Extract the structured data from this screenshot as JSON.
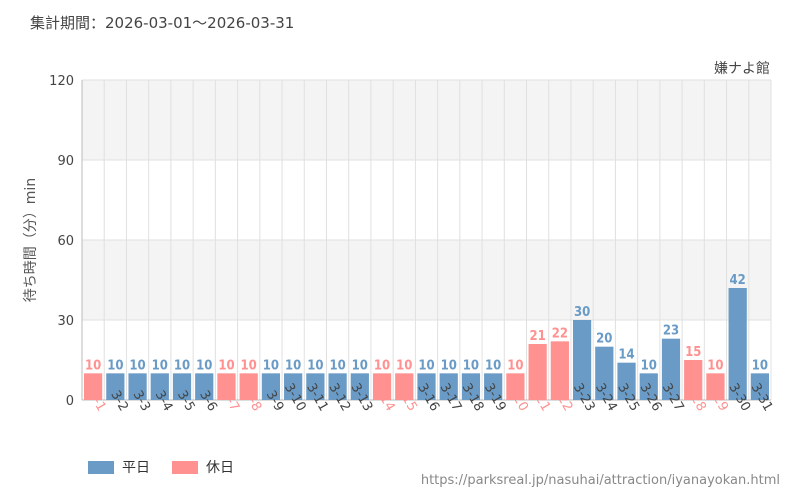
{
  "header": {
    "period": "集計期間：2026-03-01～2026-03-31"
  },
  "colors": {
    "weekday": "#6a9bc6",
    "holiday": "#ff9191",
    "grid": "#e0e0e0",
    "band": "#f4f4f4"
  },
  "chart_data": {
    "type": "bar",
    "title": "嫌ナよ館",
    "ylabel": "待ち時間（分）min",
    "ylim": [
      0,
      120
    ],
    "yticks": [
      0,
      30,
      60,
      90,
      120
    ],
    "grid": true,
    "legend_position": "bottom-left",
    "categories": [
      "3-1",
      "3-2",
      "3-3",
      "3-4",
      "3-5",
      "3-6",
      "3-7",
      "3-8",
      "3-9",
      "3-10",
      "3-11",
      "3-12",
      "3-13",
      "3-14",
      "3-15",
      "3-16",
      "3-17",
      "3-18",
      "3-19",
      "3-20",
      "3-21",
      "3-22",
      "3-23",
      "3-24",
      "3-25",
      "3-26",
      "3-27",
      "3-28",
      "3-29",
      "3-30",
      "3-31"
    ],
    "values": [
      10,
      10,
      10,
      10,
      10,
      10,
      10,
      10,
      10,
      10,
      10,
      10,
      10,
      10,
      10,
      10,
      10,
      10,
      10,
      10,
      21,
      22,
      30,
      20,
      14,
      10,
      23,
      15,
      10,
      42,
      10
    ],
    "day_type": [
      "休日",
      "平日",
      "平日",
      "平日",
      "平日",
      "平日",
      "休日",
      "休日",
      "平日",
      "平日",
      "平日",
      "平日",
      "平日",
      "休日",
      "休日",
      "平日",
      "平日",
      "平日",
      "平日",
      "休日",
      "休日",
      "休日",
      "平日",
      "平日",
      "平日",
      "平日",
      "平日",
      "休日",
      "休日",
      "平日",
      "平日"
    ],
    "legend": [
      {
        "name": "平日",
        "color": "#6a9bc6"
      },
      {
        "name": "休日",
        "color": "#ff9191"
      }
    ]
  },
  "footer": {
    "source": "https://parksreal.jp/nasuhai/attraction/iyanayokan.html"
  }
}
